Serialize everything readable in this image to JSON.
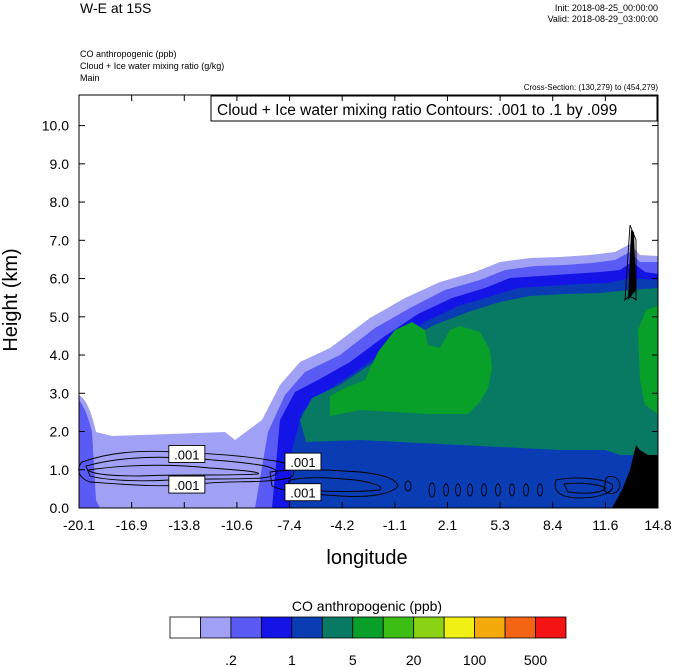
{
  "header": {
    "title": "W-E at 15S",
    "init": "Init: 2018-08-25_00:00:00",
    "valid": "Valid: 2018-08-29_03:00:00",
    "fields": [
      "CO anthropogenic   (ppb)",
      "Cloud + Ice water mixing ratio   (g/kg)",
      "Main"
    ],
    "cross_section": "Cross-Section: (130,279) to (454,279)"
  },
  "chart_data": {
    "type": "heatmap",
    "contour_label": "Cloud + Ice water mixing ratio Contours: .001 to .1 by .099",
    "xlabel": "longitude",
    "ylabel": "Height (km)",
    "xlim": [
      -20.1,
      14.8
    ],
    "ylim": [
      0,
      10.8
    ],
    "x_ticks": [
      "-20.1",
      "-16.9",
      "-13.8",
      "-10.6",
      "-7.4",
      "-4.2",
      "-1.1",
      "2.1",
      "5.3",
      "8.4",
      "11.6",
      "14.8"
    ],
    "y_ticks": [
      "0.0",
      "1.0",
      "2.0",
      "3.0",
      "4.0",
      "5.0",
      "6.0",
      "7.0",
      "8.0",
      "9.0",
      "10.0"
    ],
    "contour_labels": [
      {
        "text": ".001",
        "lon": -13.6,
        "height": 1.4
      },
      {
        "text": ".001",
        "lon": -13.6,
        "height": 0.6
      },
      {
        "text": ".001",
        "lon": -6.6,
        "height": 1.2
      },
      {
        "text": ".001",
        "lon": -6.6,
        "height": 0.4
      }
    ],
    "colorbar": {
      "title": "CO anthropogenic  (ppb)",
      "colors": [
        "#ffffff",
        "#a0a0f4",
        "#5a5af4",
        "#1414e6",
        "#0a3cb4",
        "#087a64",
        "#08a028",
        "#3cbe14",
        "#8cd214",
        "#f0f014",
        "#f4aa0a",
        "#f46414",
        "#f41414"
      ],
      "labels": [
        ".2",
        "1",
        "5",
        "20",
        "100",
        "500"
      ]
    }
  }
}
